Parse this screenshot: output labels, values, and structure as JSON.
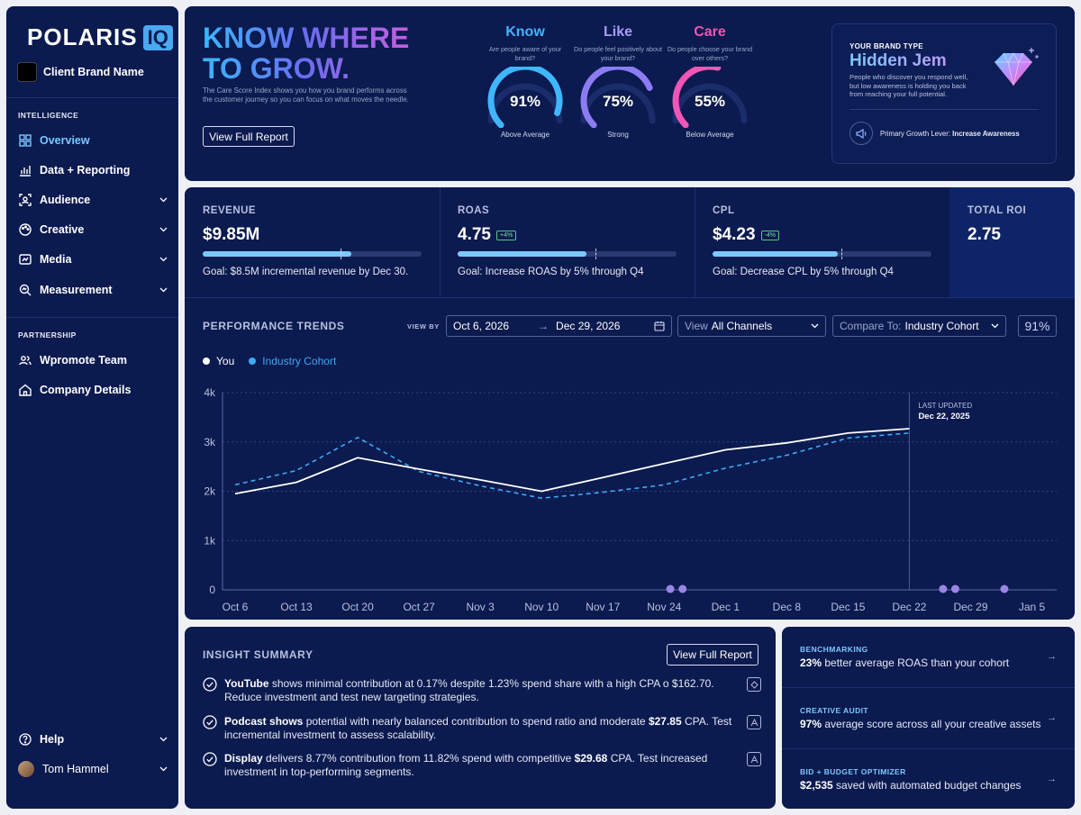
{
  "logo": {
    "text": "POLARIS",
    "badge": "IQ"
  },
  "client": {
    "name": "Client Brand Name"
  },
  "sidebar": {
    "intelligence_label": "INTELLIGENCE",
    "items": [
      {
        "label": "Overview",
        "icon": "grid-icon"
      },
      {
        "label": "Data + Reporting",
        "icon": "chart-icon"
      },
      {
        "label": "Audience",
        "icon": "audience-icon"
      },
      {
        "label": "Creative",
        "icon": "palette-icon"
      },
      {
        "label": "Media",
        "icon": "media-icon"
      },
      {
        "label": "Measurement",
        "icon": "measure-icon"
      }
    ],
    "partnership_label": "PARTNERSHIP",
    "partner_items": [
      {
        "label": "Wpromote Team",
        "icon": "team-icon"
      },
      {
        "label": "Company Details",
        "icon": "home-icon"
      }
    ],
    "help": "Help",
    "user": "Tom Hammel"
  },
  "hero": {
    "headline": "KNOW WHERE TO GROW.",
    "description": "The Care Score Index shows you how you brand performs across the customer journey so you can focus on what moves the needle.",
    "button": "View Full Report",
    "metrics": [
      {
        "title": "Know",
        "question": "Are people aware of your brand?",
        "value": "91%",
        "pct": 91,
        "status": "Above Average",
        "color": "#3fb6ff"
      },
      {
        "title": "Like",
        "question": "Do people feel positively about your brand?",
        "value": "75%",
        "pct": 75,
        "status": "Strong",
        "color": "#8c7cf2"
      },
      {
        "title": "Care",
        "question": "Do people choose your brand over others?",
        "value": "55%",
        "pct": 55,
        "status": "Below Average",
        "color": "#f255b5"
      }
    ],
    "brand_type": {
      "label": "YOUR BRAND TYPE",
      "name": "Hidden Jem",
      "description": "People who discover you respond well, but low awareness is holding you back from reaching your full potential.",
      "lever_label": "Primary Growth Lever:",
      "lever_value": "Increase Awareness"
    }
  },
  "kpis": [
    {
      "label": "REVENUE",
      "value": "$9.85M",
      "badge": "",
      "goal": "Goal: $8.5M incremental revenue by Dec 30.",
      "progress": 0.68,
      "target": 0.63
    },
    {
      "label": "ROAS",
      "value": "4.75",
      "badge": "+4%",
      "goal": "Goal: Increase ROAS by 5% through Q4",
      "progress": 0.59,
      "target": 0.63
    },
    {
      "label": "CPL",
      "value": "$4.23",
      "badge": "-4%",
      "goal": "Goal: Decrease CPL by 5% through Q4",
      "progress": 0.57,
      "target": 0.59
    }
  ],
  "total_roi": {
    "label": "TOTAL ROI",
    "value": "2.75"
  },
  "performance": {
    "title": "PERFORMANCE TRENDS",
    "view_by": "VIEW BY",
    "date_from": "Oct 6, 2026",
    "date_to": "Dec 29, 2026",
    "view_label": "View",
    "view_value": "All Channels",
    "compare_label": "Compare To:",
    "compare_value": "Industry Cohort",
    "score": "91%",
    "last_updated_label": "LAST UPDATED",
    "last_updated": "Dec 22, 2025"
  },
  "chart_data": {
    "type": "line",
    "x": [
      "Oct 6",
      "Oct 13",
      "Oct 20",
      "Oct 27",
      "Nov 3",
      "Nov 10",
      "Nov 17",
      "Nov 24",
      "Dec 1",
      "Dec 8",
      "Dec 15",
      "Dec 22",
      "Dec 29",
      "Jan 5"
    ],
    "yticks": [
      "0",
      "1k",
      "2k",
      "3k",
      "4k"
    ],
    "ylim": [
      0,
      4000
    ],
    "series": [
      {
        "name": "You",
        "color": "#ffffff",
        "dashed": false,
        "values": [
          1950,
          2180,
          2680,
          2450,
          2230,
          2000,
          2280,
          2560,
          2840,
          2980,
          3180,
          3270,
          null,
          null
        ]
      },
      {
        "name": "Industry Cohort",
        "color": "#3fa9f5",
        "dashed": true,
        "values": [
          2130,
          2420,
          3090,
          2400,
          2110,
          1860,
          1980,
          2130,
          2470,
          2730,
          3080,
          3180,
          null,
          null
        ]
      }
    ],
    "markers_x": [
      7.1,
      7.3,
      11.55,
      11.75,
      12.55
    ],
    "grid": true,
    "legend": "top-left"
  },
  "insights": {
    "title": "INSIGHT SUMMARY",
    "button": "View Full Report",
    "items": [
      {
        "bold": "YouTube",
        "text": " shows minimal contribution at 0.17% despite 1.23% spend share with a high CPA o $162.70. Reduce investment and test new targeting strategies.",
        "tag": "youtube-tag-icon"
      },
      {
        "bold": "Podcast shows",
        "text": " potential with nearly balanced contribution to spend ratio and moderate ",
        "bold2": "$27.85",
        "text2": " CPA. Test incremental investment to assess scalability.",
        "tag": "podcast-tag-icon"
      },
      {
        "bold": "Display",
        "text": " delivers 8.77% contribution from 11.82% spend with competitive ",
        "bold2": "$29.68",
        "text2": " CPA. Test increased investment in top-performing segments.",
        "tag": "display-tag-icon"
      }
    ]
  },
  "tiles": [
    {
      "label": "BENCHMARKING",
      "bold": "23%",
      "text": " better average ROAS than your cohort"
    },
    {
      "label": "CREATIVE AUDIT",
      "bold": "97%",
      "text": " average score across all your creative assets"
    },
    {
      "label": "BID + BUDGET OPTIMIZER",
      "bold": "$2,535",
      "text": " saved with automated budget changes"
    }
  ]
}
